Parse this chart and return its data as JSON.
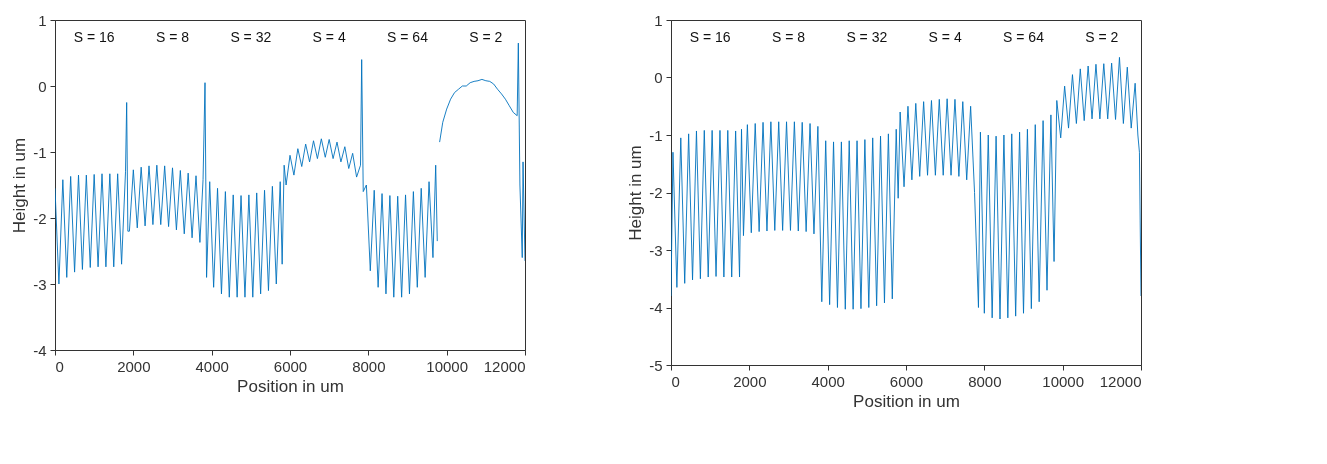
{
  "chart_data": [
    {
      "type": "line",
      "xlabel": "Position in um",
      "ylabel": "Height in um",
      "xlim": [
        0,
        12000
      ],
      "ylim": [
        -4,
        1
      ],
      "xticks": [
        0,
        2000,
        4000,
        6000,
        8000,
        10000,
        12000
      ],
      "yticks": [
        -4,
        -3,
        -2,
        -1,
        0,
        1
      ],
      "grid": false,
      "marker": "none",
      "line_style": "solid",
      "annotations": [
        "S = 16",
        "S = 8",
        "S = 32",
        "S = 4",
        "S = 64",
        "S = 2"
      ],
      "series": [
        {
          "color": "#0072bd",
          "x": [
            0,
            100,
            200,
            300,
            400,
            500,
            600,
            700,
            800,
            900,
            1000,
            1100,
            1200,
            1300,
            1400,
            1500,
            1600,
            1700,
            1800,
            1830,
            1860,
            1900,
            2000,
            2100,
            2200,
            2300,
            2400,
            2500,
            2600,
            2700,
            2800,
            2900,
            3000,
            3100,
            3200,
            3300,
            3400,
            3500,
            3600,
            3700,
            3780,
            3830,
            3870,
            3950,
            4050,
            4150,
            4250,
            4350,
            4450,
            4550,
            4650,
            4750,
            4850,
            4950,
            5050,
            5150,
            5250,
            5350,
            5450,
            5550,
            5650,
            5750,
            5800,
            5850,
            5900,
            6000,
            6100,
            6200,
            6300,
            6400,
            6500,
            6600,
            6700,
            6800,
            6900,
            7000,
            7100,
            7200,
            7300,
            7400,
            7500,
            7600,
            7700,
            7800,
            7830,
            7870,
            7950,
            8050,
            8150,
            8250,
            8350,
            8450,
            8550,
            8650,
            8750,
            8850,
            8950,
            9050,
            9150,
            9250,
            9350,
            9450,
            9550,
            9650,
            9720,
            9760,
            9800,
            9820,
            9900,
            10000,
            10100,
            10200,
            10300,
            10400,
            10500,
            10600,
            10700,
            10800,
            10900,
            11000,
            11100,
            11200,
            11300,
            11400,
            11500,
            11600,
            11700,
            11800,
            11830,
            11870,
            11930,
            11950,
            12000
          ],
          "values": [
            -1.55,
            -3.0,
            -1.42,
            -2.9,
            -1.37,
            -2.82,
            -1.35,
            -2.78,
            -1.35,
            -2.75,
            -1.34,
            -2.74,
            -1.33,
            -2.74,
            -1.33,
            -2.74,
            -1.33,
            -2.7,
            -1.3,
            -0.25,
            -2.2,
            -2.2,
            -1.27,
            -2.15,
            -1.23,
            -2.12,
            -1.21,
            -2.1,
            -1.2,
            -2.1,
            -1.21,
            -2.13,
            -1.24,
            -2.18,
            -1.28,
            -2.24,
            -1.32,
            -2.3,
            -1.36,
            -2.37,
            -1.42,
            0.05,
            -2.9,
            -1.45,
            -3.05,
            -1.55,
            -3.15,
            -1.6,
            -3.2,
            -1.65,
            -3.2,
            -1.66,
            -3.2,
            -1.65,
            -3.2,
            -1.62,
            -3.15,
            -1.58,
            -3.1,
            -1.52,
            -3.0,
            -1.45,
            -2.7,
            -1.2,
            -1.5,
            -1.05,
            -1.35,
            -0.95,
            -1.22,
            -0.88,
            -1.15,
            -0.83,
            -1.1,
            -0.8,
            -1.08,
            -0.81,
            -1.1,
            -0.85,
            -1.15,
            -0.92,
            -1.25,
            -1.02,
            -1.38,
            -1.2,
            0.4,
            -1.6,
            -1.5,
            -2.8,
            -1.58,
            -3.05,
            -1.63,
            -3.15,
            -1.66,
            -3.2,
            -1.67,
            -3.2,
            -1.65,
            -3.15,
            -1.6,
            -3.05,
            -1.55,
            -2.9,
            -1.45,
            -2.6,
            -1.2,
            -2.35,
            null,
            -0.85,
            -0.55,
            -0.35,
            -0.2,
            -0.1,
            -0.05,
            0.0,
            0.0,
            0.05,
            0.07,
            0.08,
            0.1,
            0.08,
            0.07,
            0.03,
            -0.05,
            -0.12,
            -0.2,
            -0.3,
            -0.4,
            -0.45,
            0.65,
            -1.5,
            -2.6,
            -1.15,
            -2.65
          ]
        }
      ]
    },
    {
      "type": "line",
      "xlabel": "Position in um",
      "ylabel": "Height in um",
      "xlim": [
        0,
        12000
      ],
      "ylim": [
        -5,
        1
      ],
      "xticks": [
        0,
        2000,
        4000,
        6000,
        8000,
        10000,
        12000
      ],
      "yticks": [
        -5,
        -4,
        -3,
        -2,
        -1,
        0,
        1
      ],
      "grid": false,
      "marker": "none",
      "line_style": "solid",
      "annotations": [
        "S = 16",
        "S = 8",
        "S = 32",
        "S = 4",
        "S = 64",
        "S = 2"
      ],
      "series": [
        {
          "color": "#0072bd",
          "x": [
            0,
            50,
            150,
            250,
            350,
            450,
            550,
            650,
            750,
            850,
            950,
            1050,
            1150,
            1250,
            1350,
            1450,
            1550,
            1650,
            1750,
            1800,
            1850,
            1950,
            2050,
            2150,
            2250,
            2350,
            2450,
            2550,
            2650,
            2750,
            2850,
            2950,
            3050,
            3150,
            3250,
            3350,
            3450,
            3550,
            3650,
            3750,
            3850,
            3950,
            4050,
            4150,
            4250,
            4350,
            4450,
            4550,
            4650,
            4750,
            4850,
            4950,
            5050,
            5150,
            5250,
            5350,
            5450,
            5550,
            5650,
            5750,
            5800,
            5850,
            5950,
            6050,
            6150,
            6250,
            6350,
            6450,
            6550,
            6650,
            6750,
            6850,
            6950,
            7050,
            7150,
            7250,
            7350,
            7450,
            7550,
            7650,
            7750,
            7850,
            7900,
            8000,
            8100,
            8200,
            8300,
            8400,
            8500,
            8600,
            8700,
            8800,
            8900,
            9000,
            9100,
            9200,
            9300,
            9400,
            9500,
            9600,
            9700,
            9780,
            9850,
            9950,
            10050,
            10150,
            10250,
            10350,
            10450,
            10550,
            10650,
            10750,
            10850,
            10950,
            11050,
            11150,
            11250,
            11350,
            11450,
            11550,
            11650,
            11750,
            11850,
            11920,
            11960,
            12000
          ],
          "values": [
            -3.8,
            -1.3,
            -3.65,
            -1.05,
            -3.58,
            -0.98,
            -3.52,
            -0.93,
            -3.5,
            -0.92,
            -3.47,
            -0.92,
            -3.46,
            -0.92,
            -3.47,
            -0.92,
            -3.47,
            -0.93,
            -3.47,
            -0.9,
            -2.75,
            -0.82,
            -2.7,
            -0.8,
            -2.68,
            -0.78,
            -2.67,
            -0.77,
            -2.66,
            -0.77,
            -2.66,
            -0.77,
            -2.66,
            -0.77,
            -2.67,
            -0.78,
            -2.68,
            -0.8,
            -2.72,
            -0.85,
            -3.9,
            -1.1,
            -3.95,
            -1.12,
            -4.0,
            -1.12,
            -4.03,
            -1.1,
            -4.03,
            -1.1,
            -4.02,
            -1.08,
            -4.0,
            -1.05,
            -3.97,
            -1.02,
            -3.92,
            -0.98,
            -3.85,
            -0.9,
            -2.1,
            -0.6,
            -1.9,
            -0.5,
            -1.78,
            -0.45,
            -1.72,
            -0.42,
            -1.7,
            -0.4,
            -1.7,
            -0.38,
            -1.7,
            -0.37,
            -1.7,
            -0.38,
            -1.72,
            -0.42,
            -1.78,
            -0.5,
            -2.0,
            -4.0,
            -0.95,
            -4.1,
            -1.0,
            -4.18,
            -1.02,
            -4.2,
            -1.0,
            -4.18,
            -0.98,
            -4.15,
            -0.95,
            -4.1,
            -0.9,
            -4.02,
            -0.82,
            -3.9,
            -0.75,
            -3.7,
            -0.65,
            -3.2,
            -0.4,
            -1.05,
            -0.15,
            -0.88,
            0.05,
            -0.8,
            0.15,
            -0.75,
            0.2,
            -0.72,
            0.23,
            -0.72,
            0.24,
            -0.72,
            0.25,
            -0.73,
            0.35,
            -0.8,
            0.18,
            -0.88,
            -0.1,
            -1.0,
            -1.3,
            -3.8
          ]
        }
      ]
    }
  ]
}
